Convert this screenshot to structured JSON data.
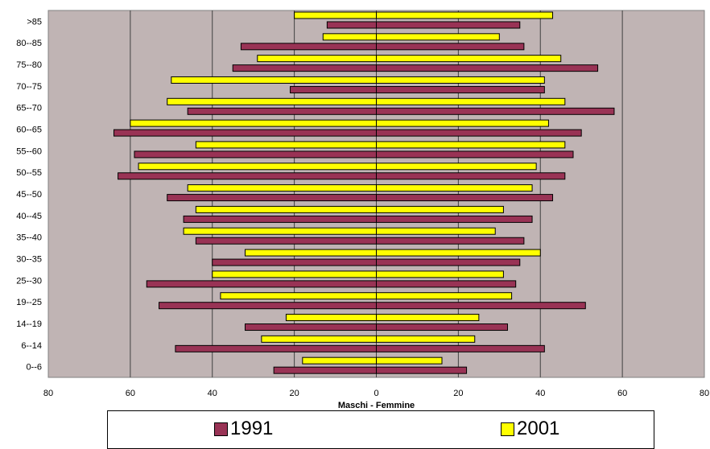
{
  "chart_data": {
    "type": "bar",
    "orientation": "horizontal",
    "title": "",
    "xlabel": "Maschi - Femmine",
    "ylabel": "",
    "xlim": [
      -80,
      80
    ],
    "xticks": [
      -80,
      -60,
      -40,
      -20,
      0,
      20,
      40,
      60,
      80
    ],
    "xtick_labels": [
      "80",
      "60",
      "40",
      "20",
      "0",
      "20",
      "40",
      "60",
      "80"
    ],
    "grid": true,
    "legend_position": "bottom",
    "categories": [
      "0--6",
      "6--14",
      "14--19",
      "19--25",
      "25--30",
      "30--35",
      "35--40",
      "40--45",
      "45--50",
      "50--55",
      "55--60",
      "60--65",
      "65--70",
      "70--75",
      "75--80",
      "80--85",
      ">85"
    ],
    "series": [
      {
        "name": "1991",
        "color": "#993355",
        "maschi": [
          25,
          49,
          32,
          53,
          56,
          40,
          44,
          47,
          51,
          63,
          59,
          64,
          46,
          21,
          35,
          33,
          12
        ],
        "femmine": [
          22,
          41,
          32,
          51,
          34,
          35,
          36,
          38,
          43,
          46,
          48,
          50,
          58,
          41,
          54,
          36,
          35
        ]
      },
      {
        "name": "2001",
        "color": "#ffff00",
        "maschi": [
          18,
          28,
          22,
          38,
          40,
          32,
          47,
          44,
          46,
          58,
          44,
          60,
          51,
          50,
          29,
          13,
          20
        ],
        "femmine": [
          16,
          24,
          25,
          33,
          31,
          40,
          29,
          31,
          38,
          39,
          46,
          42,
          46,
          41,
          45,
          30,
          43
        ]
      }
    ]
  }
}
